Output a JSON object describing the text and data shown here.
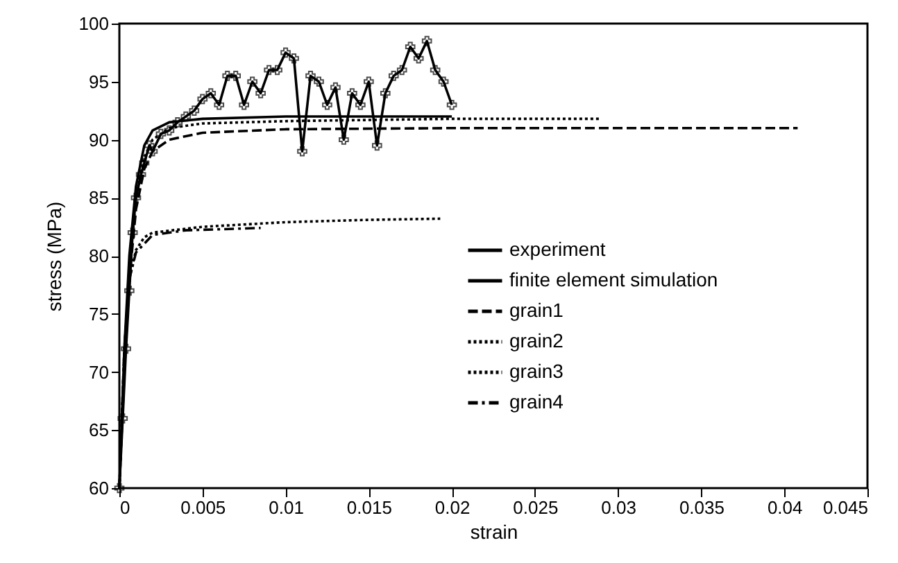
{
  "chart_data": {
    "type": "line",
    "xlabel": "strain",
    "ylabel": "stress (MPa)",
    "xlim": [
      0,
      0.045
    ],
    "xticks": [
      0,
      0.005,
      0.01,
      0.015,
      0.02,
      0.025,
      0.03,
      0.035,
      0.04,
      0.045
    ],
    "ylim": [
      60,
      100
    ],
    "yticks": [
      60,
      65,
      70,
      75,
      80,
      85,
      90,
      95,
      100
    ],
    "legend": "right",
    "series": [
      {
        "name": "experiment",
        "color": "#000000",
        "marker": "cross",
        "line_style": "solid",
        "x": [
          0,
          0.0002,
          0.0004,
          0.0006,
          0.0008,
          0.001,
          0.0013,
          0.0015,
          0.0018,
          0.002,
          0.0025,
          0.003,
          0.0035,
          0.004,
          0.0045,
          0.005,
          0.0055,
          0.006,
          0.0065,
          0.007,
          0.0075,
          0.008,
          0.0085,
          0.009,
          0.0095,
          0.01,
          0.0105,
          0.011,
          0.0115,
          0.012,
          0.0125,
          0.013,
          0.0135,
          0.014,
          0.0145,
          0.015,
          0.0155,
          0.016,
          0.0165,
          0.017,
          0.0175,
          0.018,
          0.0185,
          0.019,
          0.0195,
          0.02
        ],
        "values": [
          60,
          66,
          72,
          77,
          82,
          85,
          87,
          88,
          89.5,
          89,
          90.5,
          90.8,
          91.5,
          92,
          92.5,
          93.5,
          94,
          93,
          95.5,
          95.5,
          93,
          95,
          94,
          96,
          96,
          97.5,
          97,
          89,
          95.5,
          95,
          93,
          94.5,
          90,
          94,
          93,
          95,
          89.5,
          94,
          95.5,
          96,
          98,
          97,
          98.5,
          96,
          95,
          93
        ]
      },
      {
        "name": "finite element simulation",
        "color": "#000000",
        "marker": "none",
        "line_style": "solid",
        "x": [
          0,
          0.0003,
          0.0006,
          0.001,
          0.0015,
          0.002,
          0.003,
          0.005,
          0.01,
          0.015,
          0.02
        ],
        "values": [
          60,
          72,
          80,
          86,
          89.5,
          90.8,
          91.5,
          91.8,
          92,
          92,
          92
        ]
      },
      {
        "name": "grain1",
        "color": "#000000",
        "marker": "none",
        "line_style": "dashed",
        "x": [
          0,
          0.0003,
          0.0006,
          0.001,
          0.0015,
          0.002,
          0.003,
          0.005,
          0.01,
          0.02,
          0.03,
          0.0408
        ],
        "values": [
          60,
          70,
          78,
          84,
          87.5,
          89,
          90,
          90.6,
          90.9,
          91,
          91,
          91
        ]
      },
      {
        "name": "grain2",
        "color": "#000000",
        "marker": "none",
        "line_style": "dotted",
        "x": [
          0,
          0.0003,
          0.0006,
          0.001,
          0.0015,
          0.002,
          0.003,
          0.005,
          0.01,
          0.02,
          0.029
        ],
        "values": [
          60,
          71,
          79,
          85,
          88.5,
          90,
          91,
          91.4,
          91.6,
          91.8,
          91.8
        ]
      },
      {
        "name": "grain3",
        "color": "#000000",
        "marker": "none",
        "line_style": "dotted",
        "x": [
          0,
          0.0003,
          0.0006,
          0.001,
          0.0015,
          0.002,
          0.005,
          0.01,
          0.015,
          0.0193
        ],
        "values": [
          60,
          72,
          78,
          80.5,
          81.6,
          82,
          82.5,
          82.9,
          83.1,
          83.2
        ]
      },
      {
        "name": "grain4",
        "color": "#000000",
        "marker": "none",
        "line_style": "dashdot",
        "x": [
          0,
          0.0003,
          0.0006,
          0.001,
          0.002,
          0.004,
          0.0085
        ],
        "values": [
          60,
          72,
          78,
          80.3,
          81.8,
          82.2,
          82.4
        ]
      }
    ]
  }
}
